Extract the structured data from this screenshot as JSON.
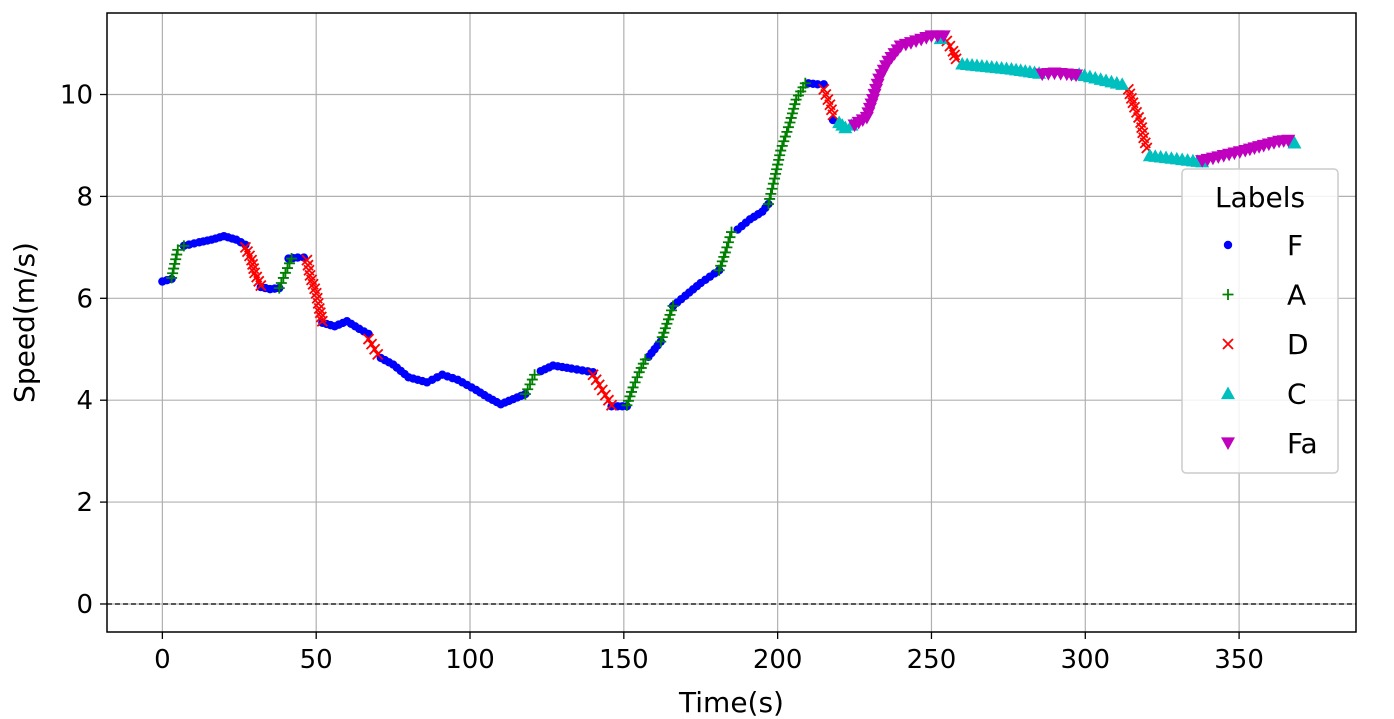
{
  "chart_data": {
    "type": "scatter",
    "title": "",
    "xlabel": "Time(s)",
    "ylabel": "Speed(m/s)",
    "xlim": [
      -18,
      388
    ],
    "ylim": [
      -0.55,
      11.6
    ],
    "xticks": [
      0,
      50,
      100,
      150,
      200,
      250,
      300,
      350
    ],
    "xtick_labels": [
      "0",
      "50",
      "100",
      "150",
      "200",
      "250",
      "300",
      "350"
    ],
    "yticks": [
      0,
      2,
      4,
      6,
      8,
      10
    ],
    "ytick_labels": [
      "0",
      "2",
      "4",
      "6",
      "8",
      "10"
    ],
    "grid": true,
    "reference_line": {
      "y": 0,
      "style": "dashed",
      "color": "#000000"
    },
    "legend": {
      "title": "Labels",
      "placement": "center-right"
    },
    "series": [
      {
        "name": "F",
        "marker": "dot",
        "color": "#0000ff",
        "segments": [
          [
            [
              0,
              6.33
            ],
            [
              3,
              6.38
            ]
          ],
          [
            [
              7,
              7.03
            ],
            [
              12,
              7.1
            ],
            [
              16,
              7.15
            ],
            [
              20,
              7.22
            ],
            [
              24,
              7.15
            ],
            [
              27,
              7.05
            ]
          ],
          [
            [
              32,
              6.22
            ],
            [
              35,
              6.18
            ],
            [
              38,
              6.2
            ]
          ],
          [
            [
              41,
              6.78
            ],
            [
              44,
              6.8
            ],
            [
              46,
              6.8
            ]
          ],
          [
            [
              52,
              5.52
            ],
            [
              56,
              5.45
            ],
            [
              60,
              5.55
            ],
            [
              64,
              5.4
            ],
            [
              67,
              5.3
            ]
          ],
          [
            [
              71,
              4.83
            ],
            [
              75,
              4.7
            ],
            [
              80,
              4.45
            ],
            [
              86,
              4.35
            ],
            [
              91,
              4.5
            ],
            [
              96,
              4.4
            ],
            [
              102,
              4.2
            ],
            [
              106,
              4.05
            ],
            [
              110,
              3.92
            ],
            [
              114,
              4.02
            ],
            [
              118,
              4.12
            ]
          ],
          [
            [
              123,
              4.57
            ],
            [
              127,
              4.68
            ],
            [
              133,
              4.62
            ],
            [
              140,
              4.55
            ]
          ],
          [
            [
              146,
              3.88
            ],
            [
              148,
              3.88
            ],
            [
              151,
              3.88
            ]
          ],
          [
            [
              158,
              4.85
            ],
            [
              162,
              5.15
            ]
          ],
          [
            [
              166,
              5.85
            ],
            [
              170,
              6.05
            ],
            [
              175,
              6.3
            ],
            [
              181,
              6.55
            ]
          ],
          [
            [
              187,
              7.35
            ],
            [
              191,
              7.55
            ],
            [
              195,
              7.7
            ],
            [
              197,
              7.85
            ]
          ],
          [
            [
              210,
              10.22
            ],
            [
              213,
              10.2
            ],
            [
              215,
              10.2
            ]
          ],
          [
            [
              218,
              9.5
            ]
          ]
        ]
      },
      {
        "name": "A",
        "marker": "plus",
        "color": "#008000",
        "segments": [
          [
            [
              3,
              6.4
            ],
            [
              5,
              6.95
            ],
            [
              7,
              7.03
            ]
          ],
          [
            [
              38,
              6.2
            ],
            [
              40,
              6.5
            ],
            [
              42,
              6.78
            ]
          ],
          [
            [
              118,
              4.12
            ],
            [
              121,
              4.5
            ]
          ],
          [
            [
              151,
              3.9
            ],
            [
              153,
              4.25
            ],
            [
              155,
              4.55
            ],
            [
              157,
              4.8
            ]
          ],
          [
            [
              162,
              5.15
            ],
            [
              164,
              5.5
            ],
            [
              166,
              5.85
            ]
          ],
          [
            [
              181,
              6.55
            ],
            [
              183,
              6.9
            ],
            [
              185,
              7.3
            ]
          ],
          [
            [
              197,
              7.85
            ],
            [
              199,
              8.35
            ],
            [
              201,
              8.9
            ],
            [
              204,
              9.45
            ],
            [
              206,
              9.9
            ],
            [
              209,
              10.22
            ]
          ]
        ]
      },
      {
        "name": "D",
        "marker": "x",
        "color": "#ff0000",
        "segments": [
          [
            [
              27,
              7.0
            ],
            [
              29,
              6.75
            ],
            [
              30,
              6.5
            ],
            [
              32,
              6.25
            ]
          ],
          [
            [
              47,
              6.75
            ],
            [
              48,
              6.45
            ],
            [
              50,
              6.1
            ],
            [
              51,
              5.8
            ],
            [
              52,
              5.55
            ]
          ],
          [
            [
              67,
              5.2
            ],
            [
              69,
              5.0
            ],
            [
              70,
              4.9
            ]
          ],
          [
            [
              140,
              4.5
            ],
            [
              142,
              4.3
            ],
            [
              144,
              4.1
            ],
            [
              146,
              3.9
            ]
          ],
          [
            [
              215,
              10.1
            ],
            [
              217,
              9.8
            ],
            [
              218,
              9.6
            ]
          ],
          [
            [
              255,
              11.05
            ],
            [
              257,
              10.85
            ],
            [
              258,
              10.7
            ]
          ],
          [
            [
              314,
              10.1
            ],
            [
              316,
              9.75
            ],
            [
              318,
              9.45
            ],
            [
              319,
              9.15
            ],
            [
              320,
              8.95
            ]
          ]
        ]
      },
      {
        "name": "C",
        "marker": "triangle-up",
        "color": "#00bfbf",
        "segments": [
          [
            [
              220,
              9.45
            ],
            [
              222,
              9.35
            ],
            [
              224,
              9.4
            ]
          ],
          [
            [
              253,
              11.1
            ]
          ],
          [
            [
              260,
              10.6
            ],
            [
              268,
              10.55
            ],
            [
              276,
              10.5
            ],
            [
              285,
              10.42
            ]
          ],
          [
            [
              298,
              10.4
            ],
            [
              305,
              10.3
            ],
            [
              312,
              10.2
            ]
          ],
          [
            [
              321,
              8.8
            ],
            [
              328,
              8.75
            ],
            [
              335,
              8.7
            ],
            [
              338,
              8.68
            ]
          ],
          [
            [
              368,
              9.05
            ]
          ]
        ]
      },
      {
        "name": "Fa",
        "marker": "triangle-down",
        "color": "#bf00bf",
        "segments": [
          [
            [
              225,
              9.4
            ],
            [
              229,
              9.55
            ],
            [
              231,
              9.9
            ],
            [
              233,
              10.3
            ],
            [
              236,
              10.65
            ],
            [
              240,
              10.95
            ],
            [
              245,
              11.05
            ],
            [
              250,
              11.15
            ],
            [
              254,
              11.15
            ]
          ],
          [
            [
              286,
              10.4
            ],
            [
              290,
              10.42
            ],
            [
              294,
              10.4
            ],
            [
              297,
              10.38
            ]
          ],
          [
            [
              338,
              8.7
            ],
            [
              345,
              8.8
            ],
            [
              352,
              8.9
            ],
            [
              358,
              9.0
            ],
            [
              363,
              9.08
            ],
            [
              366,
              9.1
            ]
          ]
        ]
      }
    ]
  }
}
